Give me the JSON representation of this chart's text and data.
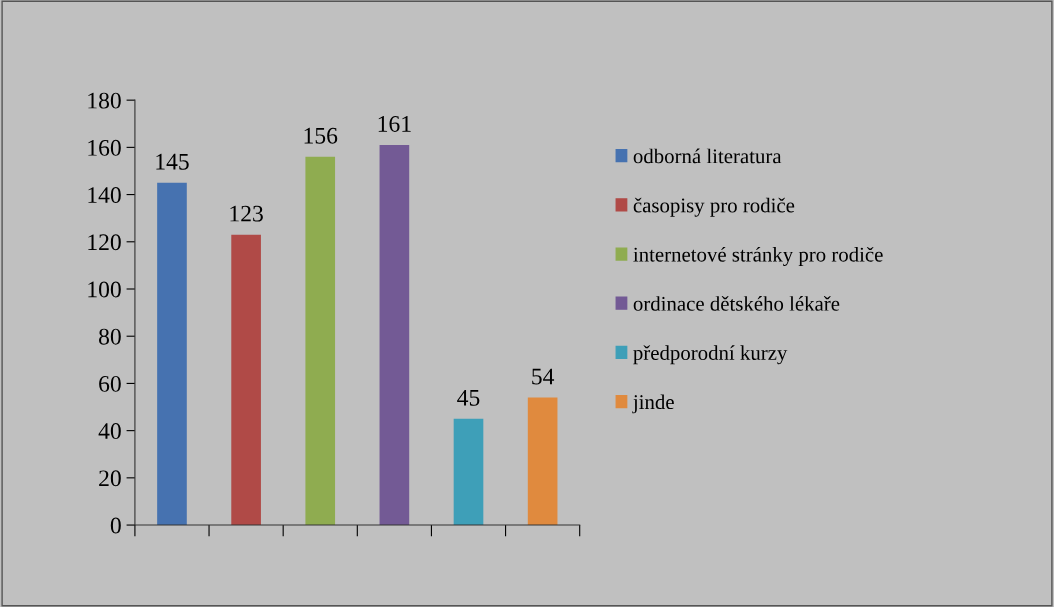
{
  "chart_data": {
    "type": "bar",
    "categories": [
      null,
      null,
      null,
      null,
      null,
      null
    ],
    "series": [
      {
        "name": "odborná literatura",
        "color": "#4672b0",
        "values": [
          145,
          null,
          null,
          null,
          null,
          null
        ]
      },
      {
        "name": "časopisy pro rodiče",
        "color": "#b04a47",
        "values": [
          null,
          123,
          null,
          null,
          null,
          null
        ]
      },
      {
        "name": "internetové stránky pro rodiče",
        "color": "#8fac50",
        "values": [
          null,
          null,
          156,
          null,
          null,
          null
        ]
      },
      {
        "name": "ordinace dětského lékaře",
        "color": "#735a95",
        "values": [
          null,
          null,
          null,
          161,
          null,
          null
        ]
      },
      {
        "name": "předporodní kurzy",
        "color": "#3e9fb8",
        "values": [
          null,
          null,
          null,
          null,
          45,
          null
        ]
      },
      {
        "name": "jinde",
        "color": "#e08a3e",
        "values": [
          null,
          null,
          null,
          null,
          null,
          54
        ]
      }
    ],
    "ylim": [
      0,
      180
    ],
    "yticks": [
      0,
      20,
      40,
      60,
      80,
      100,
      120,
      140,
      160,
      180
    ],
    "data_labels": true,
    "grid": false,
    "legend": "right"
  }
}
